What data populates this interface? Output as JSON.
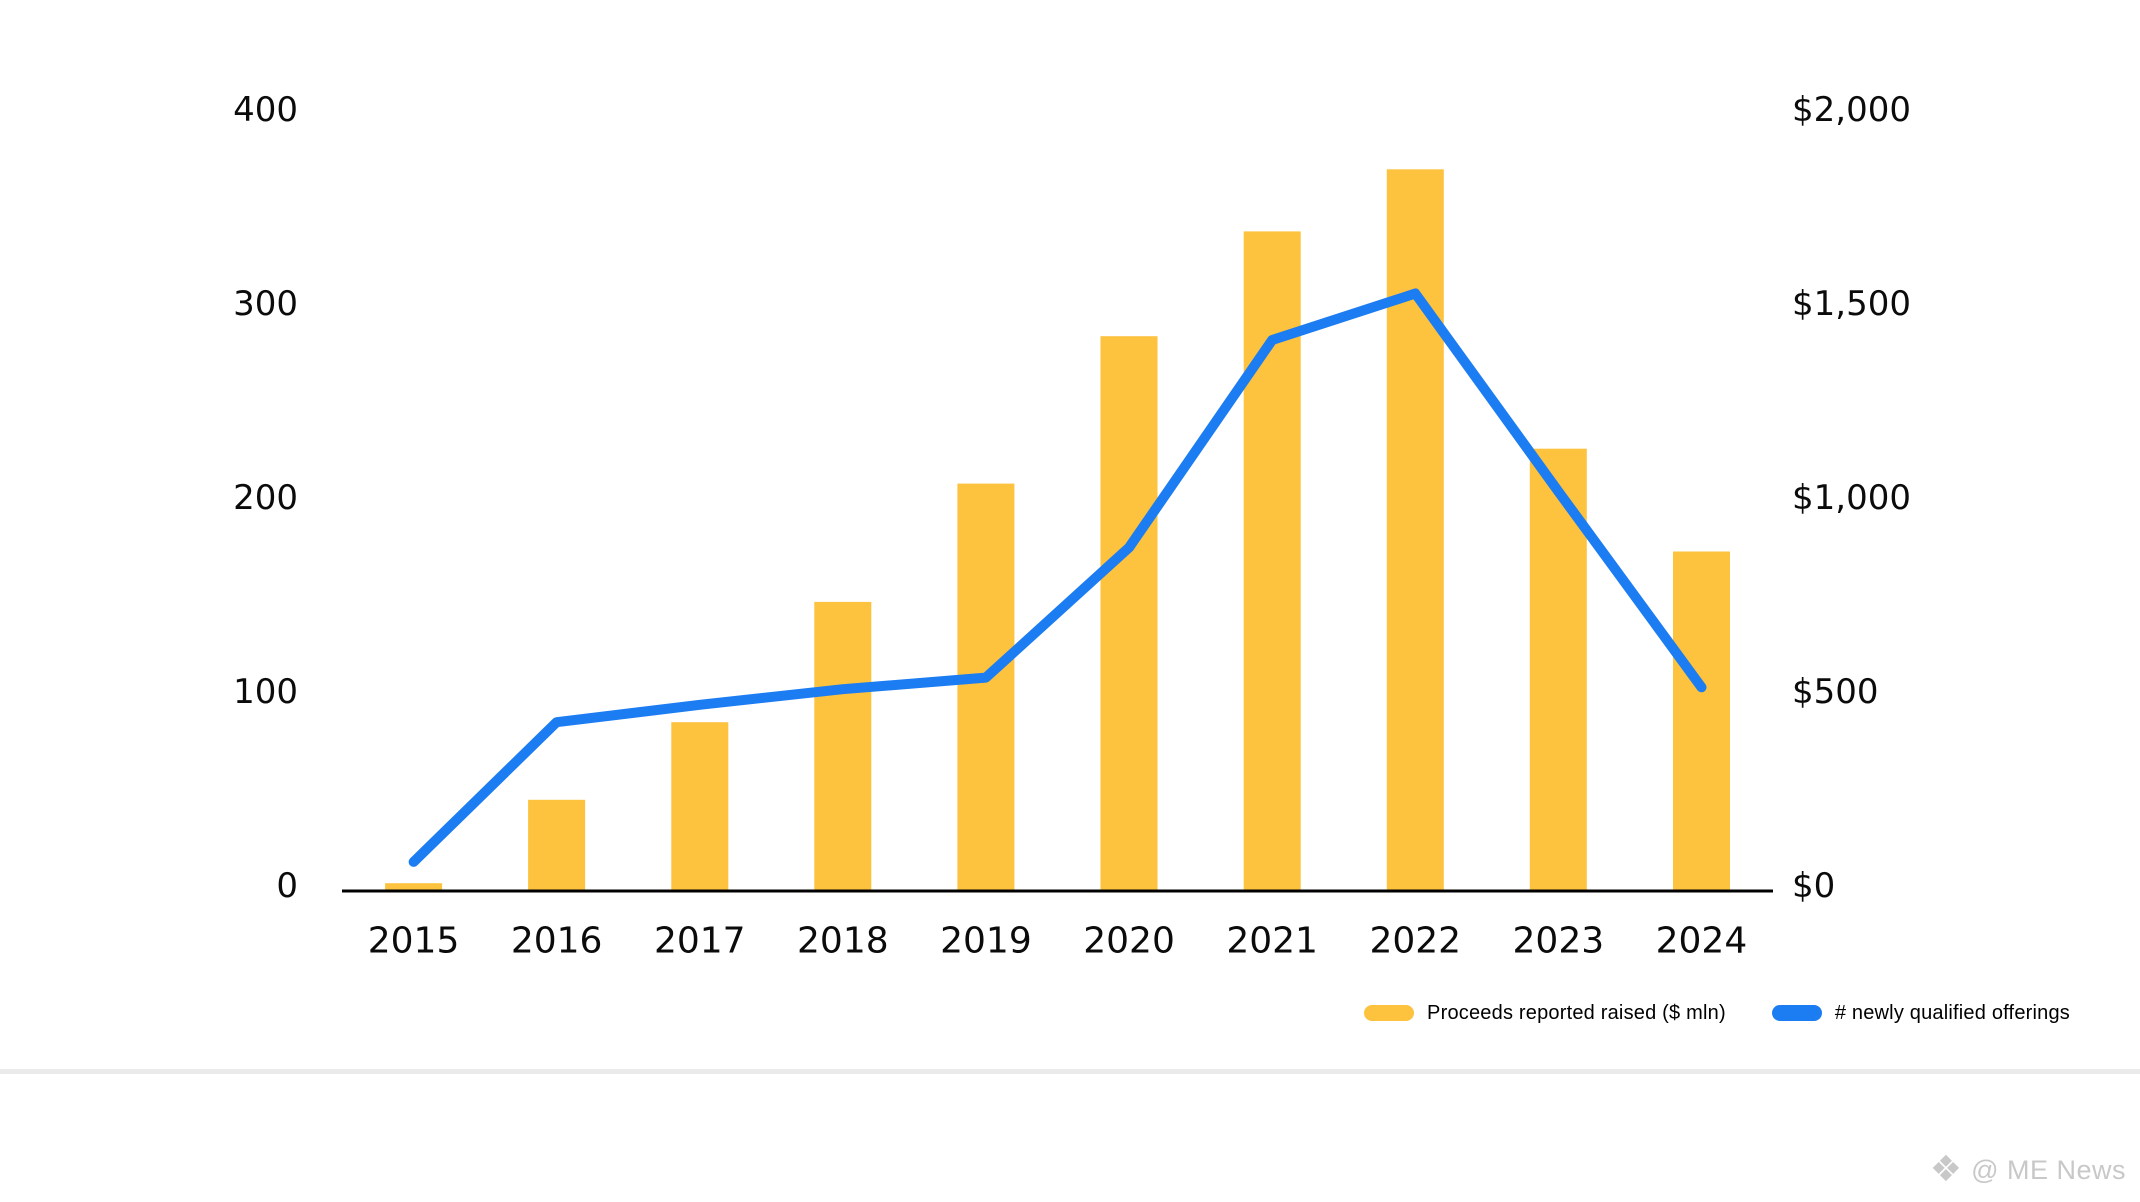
{
  "chart_data": {
    "type": "combo_bar_line",
    "title": "",
    "categories": [
      "2015",
      "2016",
      "2017",
      "2018",
      "2019",
      "2020",
      "2021",
      "2022",
      "2023",
      "2024"
    ],
    "series": [
      {
        "name": "Proceeds reported raised ($ mln)",
        "type": "bar",
        "axis": "right",
        "color": "#FDC23E",
        "values": [
          20,
          235,
          435,
          745,
          1050,
          1430,
          1700,
          1860,
          1140,
          875
        ]
      },
      {
        "name": "# newly qualified offerings",
        "type": "line",
        "axis": "left",
        "color": "#1C7CF2",
        "values": [
          15,
          87,
          96,
          104,
          110,
          177,
          284,
          308,
          206,
          105
        ]
      }
    ],
    "left_axis": {
      "range": [
        0,
        400
      ],
      "ticks": [
        0,
        100,
        200,
        300,
        400
      ],
      "labels": [
        "0",
        "100",
        "200",
        "300",
        "400"
      ]
    },
    "right_axis": {
      "range": [
        0,
        2000
      ],
      "ticks": [
        0,
        500,
        1000,
        1500,
        2000
      ],
      "labels": [
        "$0",
        "$500",
        "$1,000",
        "$1,500",
        "$2,000"
      ]
    },
    "grid": false,
    "legend_position": "bottom-right"
  },
  "legend": {
    "items": [
      {
        "label": "Proceeds reported raised ($ mln)",
        "color": "#FDC23E"
      },
      {
        "label": "# newly qualified offerings",
        "color": "#1C7CF2"
      }
    ]
  },
  "watermark": {
    "icon": "me-news-logo",
    "glyph": "❖",
    "text": "@ ME News"
  },
  "colors": {
    "background": "#FFFFFF",
    "bar": "#FDC23E",
    "line": "#1C7CF2",
    "axis": "#000000",
    "tick_text": "#0B0B0B",
    "separator": "#EAEAEA",
    "watermark": "#C8C8C8"
  }
}
